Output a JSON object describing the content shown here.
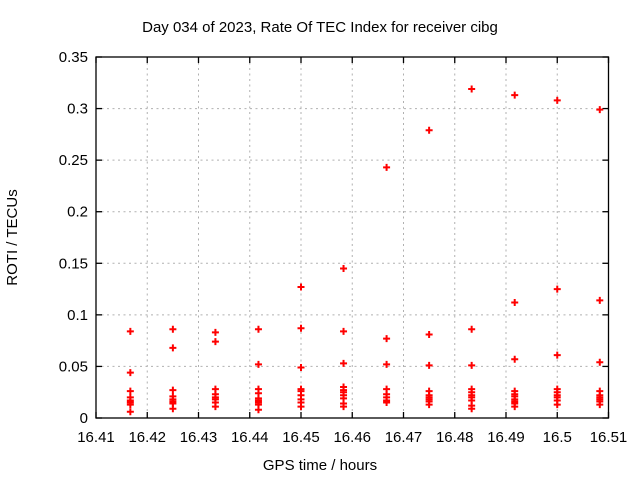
{
  "chart_data": {
    "type": "scatter",
    "title": "Day 034 of 2023, Rate Of TEC Index for receiver cibg",
    "xlabel": "GPS time / hours",
    "ylabel": "ROTI / TECUs",
    "xlim": [
      16.41,
      16.51
    ],
    "ylim": [
      0,
      0.35
    ],
    "xticks": {
      "values": [
        16.41,
        16.42,
        16.43,
        16.44,
        16.45,
        16.46,
        16.47,
        16.48,
        16.49,
        16.5,
        16.51
      ],
      "labels": [
        "16.41",
        "16.42",
        "16.43",
        "16.44",
        "16.45",
        "16.46",
        "16.47",
        "16.48",
        "16.49",
        "16.5",
        "16.51"
      ]
    },
    "yticks": {
      "values": [
        0,
        0.05,
        0.1,
        0.15,
        0.2,
        0.25,
        0.3,
        0.35
      ],
      "labels": [
        "0",
        "0.05",
        "0.1",
        "0.15",
        "0.2",
        "0.25",
        "0.3",
        "0.35"
      ]
    },
    "grid": true,
    "legend_position": "none",
    "marker": {
      "shape": "plus",
      "color": "#ff0000",
      "size": 7,
      "stroke_width": 2
    },
    "axis_color": "#000000",
    "grid_color": "#b0b0b0",
    "background_color": "#ffffff",
    "series": [
      {
        "name": "ROTI",
        "points": [
          [
            16.4167,
            0.084
          ],
          [
            16.4167,
            0.044
          ],
          [
            16.4167,
            0.026
          ],
          [
            16.4167,
            0.02
          ],
          [
            16.4167,
            0.017
          ],
          [
            16.4167,
            0.015
          ],
          [
            16.4167,
            0.013
          ],
          [
            16.4167,
            0.006
          ],
          [
            16.425,
            0.086
          ],
          [
            16.425,
            0.068
          ],
          [
            16.425,
            0.027
          ],
          [
            16.425,
            0.021
          ],
          [
            16.425,
            0.018
          ],
          [
            16.425,
            0.016
          ],
          [
            16.425,
            0.014
          ],
          [
            16.425,
            0.009
          ],
          [
            16.4333,
            0.083
          ],
          [
            16.4333,
            0.074
          ],
          [
            16.4333,
            0.028
          ],
          [
            16.4333,
            0.023
          ],
          [
            16.4333,
            0.02
          ],
          [
            16.4333,
            0.018
          ],
          [
            16.4333,
            0.015
          ],
          [
            16.4333,
            0.011
          ],
          [
            16.4417,
            0.086
          ],
          [
            16.4417,
            0.052
          ],
          [
            16.4417,
            0.028
          ],
          [
            16.4417,
            0.024
          ],
          [
            16.4417,
            0.019
          ],
          [
            16.4417,
            0.017
          ],
          [
            16.4417,
            0.015
          ],
          [
            16.4417,
            0.013
          ],
          [
            16.4417,
            0.008
          ],
          [
            16.45,
            0.127
          ],
          [
            16.45,
            0.087
          ],
          [
            16.45,
            0.049
          ],
          [
            16.45,
            0.028
          ],
          [
            16.45,
            0.026
          ],
          [
            16.45,
            0.022
          ],
          [
            16.45,
            0.018
          ],
          [
            16.45,
            0.015
          ],
          [
            16.45,
            0.011
          ],
          [
            16.4583,
            0.145
          ],
          [
            16.4583,
            0.084
          ],
          [
            16.4583,
            0.053
          ],
          [
            16.4583,
            0.03
          ],
          [
            16.4583,
            0.027
          ],
          [
            16.4583,
            0.025
          ],
          [
            16.4583,
            0.022
          ],
          [
            16.4583,
            0.019
          ],
          [
            16.4583,
            0.014
          ],
          [
            16.4583,
            0.011
          ],
          [
            16.4667,
            0.243
          ],
          [
            16.4667,
            0.077
          ],
          [
            16.4667,
            0.052
          ],
          [
            16.4667,
            0.028
          ],
          [
            16.4667,
            0.023
          ],
          [
            16.4667,
            0.02
          ],
          [
            16.4667,
            0.017
          ],
          [
            16.4667,
            0.015
          ],
          [
            16.475,
            0.279
          ],
          [
            16.475,
            0.081
          ],
          [
            16.475,
            0.051
          ],
          [
            16.475,
            0.026
          ],
          [
            16.475,
            0.022
          ],
          [
            16.475,
            0.02
          ],
          [
            16.475,
            0.018
          ],
          [
            16.475,
            0.016
          ],
          [
            16.475,
            0.013
          ],
          [
            16.4833,
            0.319
          ],
          [
            16.4833,
            0.086
          ],
          [
            16.4833,
            0.051
          ],
          [
            16.4833,
            0.028
          ],
          [
            16.4833,
            0.025
          ],
          [
            16.4833,
            0.022
          ],
          [
            16.4833,
            0.02
          ],
          [
            16.4833,
            0.017
          ],
          [
            16.4833,
            0.012
          ],
          [
            16.4833,
            0.009
          ],
          [
            16.4917,
            0.313
          ],
          [
            16.4917,
            0.112
          ],
          [
            16.4917,
            0.057
          ],
          [
            16.4917,
            0.026
          ],
          [
            16.4917,
            0.023
          ],
          [
            16.4917,
            0.021
          ],
          [
            16.4917,
            0.018
          ],
          [
            16.4917,
            0.016
          ],
          [
            16.4917,
            0.014
          ],
          [
            16.4917,
            0.011
          ],
          [
            16.5,
            0.308
          ],
          [
            16.5,
            0.125
          ],
          [
            16.5,
            0.061
          ],
          [
            16.5,
            0.028
          ],
          [
            16.5,
            0.025
          ],
          [
            16.5,
            0.022
          ],
          [
            16.5,
            0.02
          ],
          [
            16.5,
            0.017
          ],
          [
            16.5,
            0.013
          ],
          [
            16.5083,
            0.299
          ],
          [
            16.5083,
            0.114
          ],
          [
            16.5083,
            0.054
          ],
          [
            16.5083,
            0.026
          ],
          [
            16.5083,
            0.022
          ],
          [
            16.5083,
            0.02
          ],
          [
            16.5083,
            0.018
          ],
          [
            16.5083,
            0.016
          ],
          [
            16.5083,
            0.013
          ]
        ]
      }
    ]
  }
}
